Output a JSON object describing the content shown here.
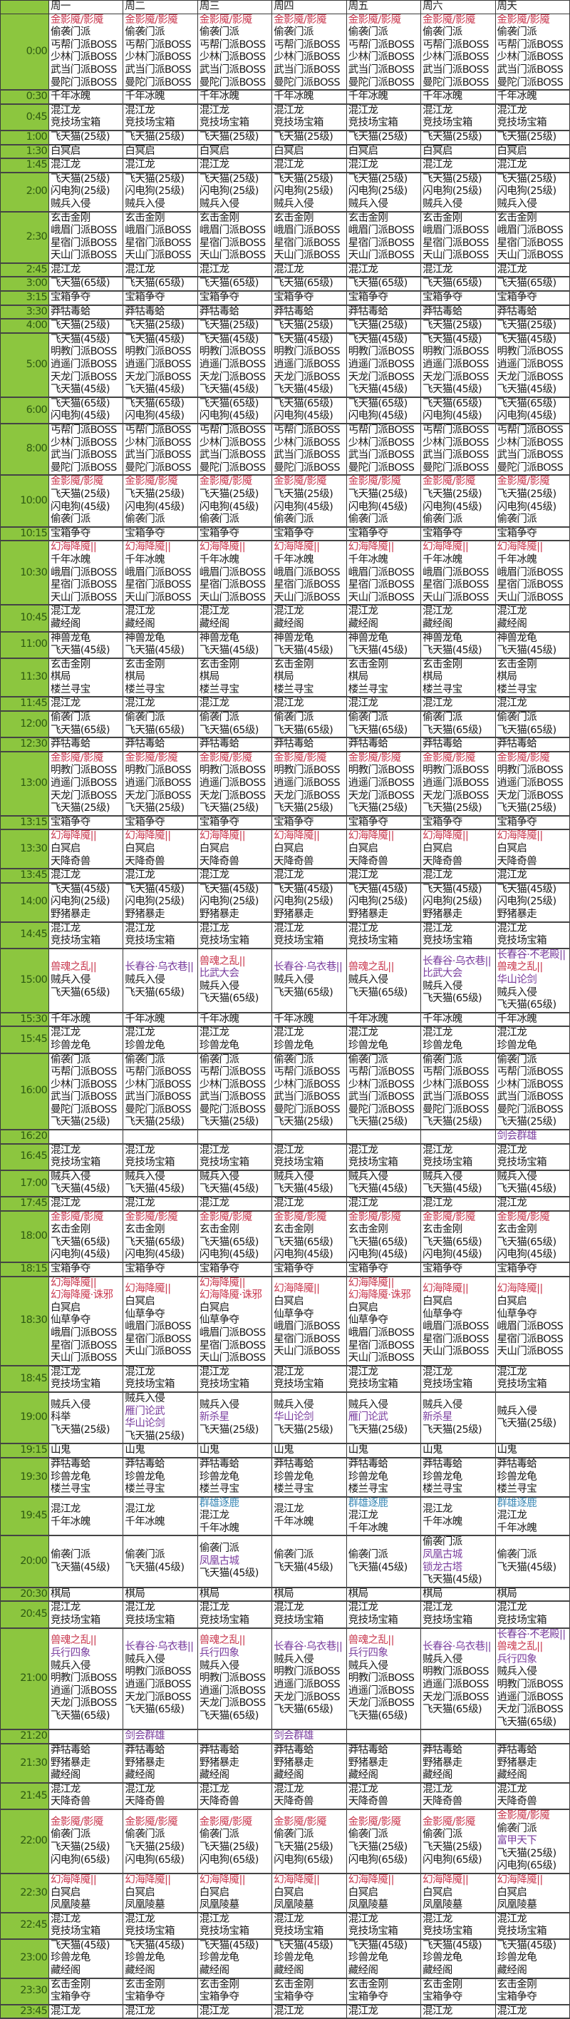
{
  "header": {
    "corner": "",
    "days": [
      "周一",
      "周二",
      "周三",
      "周四",
      "周五",
      "周六",
      "周天"
    ]
  },
  "event_colors": {
    "金影魇/影魇": "#c9394f",
    "幻海降魇||": "#c9394f",
    "幻海降魇·诛邪": "#c9394f",
    "兽魂之乱||": "#c9394f",
    "长春谷·乌衣巷||": "#7a3e9e",
    "长春谷·不老殿||": "#7a3e9e",
    "比武大会": "#7a3e9e",
    "华山论剑": "#7a3e9e",
    "雁门论武": "#7a3e9e",
    "新杀星": "#7a3e9e",
    "剑会群雄": "#7a3e9e",
    "凤凰古城": "#7a3e9e",
    "锁龙古塔": "#7a3e9e",
    "兵行四象": "#7a3e9e",
    "富甲天下": "#7a3e9e",
    "群雄逐鹿": "#3a88b5"
  },
  "rows": [
    {
      "time": "0:00",
      "all": [
        "金影魇/影魇",
        "偷袭门派",
        "丐帮门派BOSS",
        "少林门派BOSS",
        "武当门派BOSS",
        "曼陀门派BOSS"
      ]
    },
    {
      "time": "0:30",
      "all": [
        "千年冰魄"
      ]
    },
    {
      "time": "0:45",
      "all": [
        "混江龙",
        "竞技场宝箱"
      ]
    },
    {
      "time": "1:00",
      "all": [
        "飞天猫(25级)"
      ]
    },
    {
      "time": "1:30",
      "all": [
        "白冥启"
      ]
    },
    {
      "time": "1:45",
      "all": [
        "混江龙"
      ]
    },
    {
      "time": "2:00",
      "all": [
        "飞天猫(25级)",
        "闪电狗(25级)",
        "贼兵入侵"
      ]
    },
    {
      "time": "2:30",
      "all": [
        "玄击金刚",
        "峨眉门派BOSS",
        "星宿门派BOSS",
        "天山门派BOSS"
      ]
    },
    {
      "time": "2:45",
      "all": [
        "混江龙"
      ]
    },
    {
      "time": "3:00",
      "all": [
        "飞天猫(65级)"
      ]
    },
    {
      "time": "3:15",
      "all": [
        "宝箱争夺"
      ]
    },
    {
      "time": "3:30",
      "all": [
        "莽牯毒蛤"
      ]
    },
    {
      "time": "4:00",
      "all": [
        "飞天猫(25级)"
      ]
    },
    {
      "time": "5:00",
      "all": [
        "飞天猫(45级)",
        "明教门派BOSS",
        "逍遥门派BOSS",
        "天龙门派BOSS",
        "飞天猫(45级)"
      ]
    },
    {
      "time": "6:00",
      "all": [
        "飞天猫(65级)",
        "闪电狗(45级)"
      ]
    },
    {
      "time": "8:00",
      "all": [
        "丐帮门派BOSS",
        "少林门派BOSS",
        "武当门派BOSS",
        "曼陀门派BOSS"
      ]
    },
    {
      "time": "10:00",
      "all": [
        "金影魇/影魇",
        "飞天猫(25级)",
        "闪电狗(45级)",
        "偷袭门派"
      ]
    },
    {
      "time": "10:15",
      "all": [
        "宝箱争夺"
      ]
    },
    {
      "time": "10:30",
      "all": [
        "幻海降魇||",
        "千年冰魄",
        "峨眉门派BOSS",
        "星宿门派BOSS",
        "天山门派BOSS"
      ]
    },
    {
      "time": "10:45",
      "all": [
        "混江龙",
        "藏经阁"
      ]
    },
    {
      "time": "11:00",
      "all": [
        "神兽龙龟",
        "飞天猫(45级)"
      ]
    },
    {
      "time": "11:30",
      "all": [
        "玄击金刚",
        "棋局",
        "楼兰寻宝"
      ]
    },
    {
      "time": "11:45",
      "all": [
        "混江龙"
      ]
    },
    {
      "time": "12:00",
      "all": [
        "偷袭门派",
        "飞天猫(65级)"
      ]
    },
    {
      "time": "12:30",
      "all": [
        "莽牯毒蛤"
      ]
    },
    {
      "time": "13:00",
      "all": [
        "金影魇/影魇",
        "明教门派BOSS",
        "逍遥门派BOSS",
        "天龙门派BOSS",
        "飞天猫(25级)"
      ]
    },
    {
      "time": "13:15",
      "all": [
        "宝箱争夺"
      ]
    },
    {
      "time": "13:30",
      "all": [
        "幻海降魇||",
        "白冥启",
        "天降奇兽"
      ]
    },
    {
      "time": "13:45",
      "all": [
        "混江龙"
      ]
    },
    {
      "time": "14:00",
      "all": [
        "飞天猫(45级)",
        "闪电狗(25级)",
        "野猪暴走"
      ]
    },
    {
      "time": "14:45",
      "all": [
        "混江龙",
        "竞技场宝箱"
      ]
    },
    {
      "time": "15:00",
      "days": [
        [
          "兽魂之乱||",
          "贼兵入侵",
          "飞天猫(65级)"
        ],
        [
          "长春谷·乌衣巷||",
          "贼兵入侵",
          "飞天猫(65级)"
        ],
        [
          "兽魂之乱||",
          "比武大会",
          "贼兵入侵",
          "飞天猫(65级)"
        ],
        [
          "长春谷·乌衣巷||",
          "贼兵入侵",
          "飞天猫(65级)"
        ],
        [
          "兽魂之乱||",
          "贼兵入侵",
          "飞天猫(65级)"
        ],
        [
          "长春谷·乌衣巷||",
          "比武大会",
          "贼兵入侵",
          "飞天猫(65级)"
        ],
        [
          "长春谷·不老殿||",
          "兽魂之乱||",
          "华山论剑",
          "贼兵入侵",
          "飞天猫(65级)"
        ]
      ]
    },
    {
      "time": "15:30",
      "all": [
        "千年冰魄"
      ]
    },
    {
      "time": "15:45",
      "all": [
        "混江龙",
        "珍兽龙龟"
      ]
    },
    {
      "time": "16:00",
      "all": [
        "偷袭门派",
        "丐帮门派BOSS",
        "少林门派BOSS",
        "武当门派BOSS",
        "曼陀门派BOSS",
        "飞天猫(25级)"
      ]
    },
    {
      "time": "16:20",
      "days": [
        [],
        [],
        [],
        [],
        [],
        [],
        [
          "剑会群雄"
        ]
      ]
    },
    {
      "time": "16:45",
      "all": [
        "混江龙",
        "竞技场宝箱"
      ]
    },
    {
      "time": "17:00",
      "all": [
        "贼兵入侵",
        "飞天猫(45级)"
      ]
    },
    {
      "time": "17:45",
      "all": [
        "混江龙"
      ]
    },
    {
      "time": "18:00",
      "all": [
        "金影魇/影魇",
        "玄击金刚",
        "飞天猫(65级)",
        "闪电狗(45级)"
      ]
    },
    {
      "time": "18:15",
      "all": [
        "宝箱争夺"
      ]
    },
    {
      "time": "18:30",
      "days": [
        [
          "幻海降魇||",
          "幻海降魇·诛邪",
          "白冥启",
          "仙草争夺",
          "峨眉门派BOSS",
          "星宿门派BOSS",
          "天山门派BOSS"
        ],
        [
          "幻海降魇||",
          "白冥启",
          "仙草争夺",
          "峨眉门派BOSS",
          "星宿门派BOSS",
          "天山门派BOSS"
        ],
        [
          "幻海降魇||",
          "幻海降魇·诛邪",
          "白冥启",
          "仙草争夺",
          "峨眉门派BOSS",
          "星宿门派BOSS",
          "天山门派BOSS"
        ],
        [
          "幻海降魇||",
          "白冥启",
          "仙草争夺",
          "峨眉门派BOSS",
          "星宿门派BOSS",
          "天山门派BOSS"
        ],
        [
          "幻海降魇||",
          "幻海降魇·诛邪",
          "白冥启",
          "仙草争夺",
          "峨眉门派BOSS",
          "星宿门派BOSS",
          "天山门派BOSS"
        ],
        [
          "幻海降魇||",
          "白冥启",
          "仙草争夺",
          "峨眉门派BOSS",
          "星宿门派BOSS",
          "天山门派BOSS"
        ],
        [
          "幻海降魇||",
          "白冥启",
          "仙草争夺",
          "峨眉门派BOSS",
          "星宿门派BOSS",
          "天山门派BOSS"
        ]
      ]
    },
    {
      "time": "18:45",
      "all": [
        "混江龙",
        "竞技场宝箱"
      ]
    },
    {
      "time": "19:00",
      "days": [
        [
          "贼兵入侵",
          "科举",
          "飞天猫(25级)"
        ],
        [
          "贼兵入侵",
          "雁门论武",
          "华山论剑",
          "飞天猫(25级)"
        ],
        [
          "贼兵入侵",
          "新杀星",
          "飞天猫(25级)"
        ],
        [
          "贼兵入侵",
          "华山论剑",
          "飞天猫(25级)"
        ],
        [
          "贼兵入侵",
          "雁门论武",
          "飞天猫(25级)"
        ],
        [
          "贼兵入侵",
          "新杀星",
          "飞天猫(25级)"
        ],
        [
          "贼兵入侵",
          "飞天猫(25级)"
        ]
      ]
    },
    {
      "time": "19:15",
      "all": [
        "山鬼"
      ]
    },
    {
      "time": "19:30",
      "all": [
        "莽牯毒蛤",
        "珍兽龙龟",
        "楼兰寻宝"
      ]
    },
    {
      "time": "19:45",
      "days": [
        [
          "混江龙",
          "千年冰魄"
        ],
        [
          "混江龙",
          "千年冰魄"
        ],
        [
          "群雄逐鹿",
          "混江龙",
          "千年冰魄"
        ],
        [
          "混江龙",
          "千年冰魄"
        ],
        [
          "群雄逐鹿",
          "混江龙",
          "千年冰魄"
        ],
        [
          "混江龙",
          "千年冰魄"
        ],
        [
          "群雄逐鹿",
          "混江龙",
          "千年冰魄"
        ]
      ]
    },
    {
      "time": "20:00",
      "days": [
        [
          "偷袭门派",
          "飞天猫(45级)"
        ],
        [
          "偷袭门派",
          "飞天猫(45级)"
        ],
        [
          "偷袭门派",
          "凤凰古城",
          "飞天猫(45级)"
        ],
        [
          "偷袭门派",
          "飞天猫(45级)"
        ],
        [
          "偷袭门派",
          "飞天猫(45级)"
        ],
        [
          "偷袭门派",
          "凤凰古城",
          "锁龙古塔",
          "飞天猫(45级)"
        ],
        [
          "偷袭门派",
          "飞天猫(45级)"
        ]
      ]
    },
    {
      "time": "20:30",
      "all": [
        "棋局"
      ]
    },
    {
      "time": "20:45",
      "all": [
        "混江龙",
        "竞技场宝箱"
      ]
    },
    {
      "time": "21:00",
      "days": [
        [
          "兽魂之乱||",
          "兵行四象",
          "贼兵入侵",
          "明教门派BOSS",
          "逍遥门派BOSS",
          "天龙门派BOSS",
          "飞天猫(65级)"
        ],
        [
          "长春谷·乌衣巷||",
          "贼兵入侵",
          "明教门派BOSS",
          "逍遥门派BOSS",
          "天龙门派BOSS",
          "飞天猫(65级)"
        ],
        [
          "兽魂之乱||",
          "兵行四象",
          "贼兵入侵",
          "明教门派BOSS",
          "逍遥门派BOSS",
          "天龙门派BOSS",
          "飞天猫(65级)"
        ],
        [
          "长春谷·乌衣巷||",
          "贼兵入侵",
          "明教门派BOSS",
          "逍遥门派BOSS",
          "天龙门派BOSS",
          "飞天猫(65级)"
        ],
        [
          "兽魂之乱||",
          "兵行四象",
          "贼兵入侵",
          "明教门派BOSS",
          "逍遥门派BOSS",
          "天龙门派BOSS",
          "飞天猫(65级)"
        ],
        [
          "长春谷·乌衣巷||",
          "贼兵入侵",
          "明教门派BOSS",
          "逍遥门派BOSS",
          "天龙门派BOSS",
          "飞天猫(65级)"
        ],
        [
          "长春谷·不老殿||",
          "兽魂之乱||",
          "兵行四象",
          "贼兵入侵",
          "明教门派BOSS",
          "逍遥门派BOSS",
          "天龙门派BOSS",
          "飞天猫(65级)"
        ]
      ]
    },
    {
      "time": "21:20",
      "days": [
        [],
        [
          "剑会群雄"
        ],
        [],
        [
          "剑会群雄"
        ],
        [],
        [],
        []
      ]
    },
    {
      "time": "21:30",
      "all": [
        "莽牯毒蛤",
        "野猪暴走",
        "藏经阁"
      ]
    },
    {
      "time": "21:45",
      "all": [
        "混江龙",
        "天降奇兽"
      ]
    },
    {
      "time": "22:00",
      "days": [
        [
          "金影魇/影魇",
          "偷袭门派",
          "飞天猫(25级)",
          "闪电狗(65级)"
        ],
        [
          "金影魇/影魇",
          "偷袭门派",
          "飞天猫(25级)",
          "闪电狗(65级)"
        ],
        [
          "金影魇/影魇",
          "偷袭门派",
          "飞天猫(25级)",
          "闪电狗(65级)"
        ],
        [
          "金影魇/影魇",
          "偷袭门派",
          "飞天猫(25级)",
          "闪电狗(65级)"
        ],
        [
          "金影魇/影魇",
          "偷袭门派",
          "飞天猫(25级)",
          "闪电狗(65级)"
        ],
        [
          "金影魇/影魇",
          "偷袭门派",
          "飞天猫(25级)",
          "闪电狗(65级)"
        ],
        [
          "金影魇/影魇",
          "偷袭门派",
          "富甲天下",
          "飞天猫(25级)",
          "闪电狗(65级)"
        ]
      ]
    },
    {
      "time": "22:30",
      "all": [
        "幻海降魇||",
        "白冥启",
        "凤凰陵墓"
      ]
    },
    {
      "time": "22:45",
      "all": [
        "混江龙",
        "竞技场宝箱"
      ]
    },
    {
      "time": "23:00",
      "all": [
        "飞天猫(45级)",
        "珍兽龙龟",
        "藏经阁"
      ]
    },
    {
      "time": "23:30",
      "all": [
        "玄击金刚",
        "宝箱争夺"
      ]
    },
    {
      "time": "23:45",
      "all": [
        "混江龙"
      ]
    }
  ]
}
